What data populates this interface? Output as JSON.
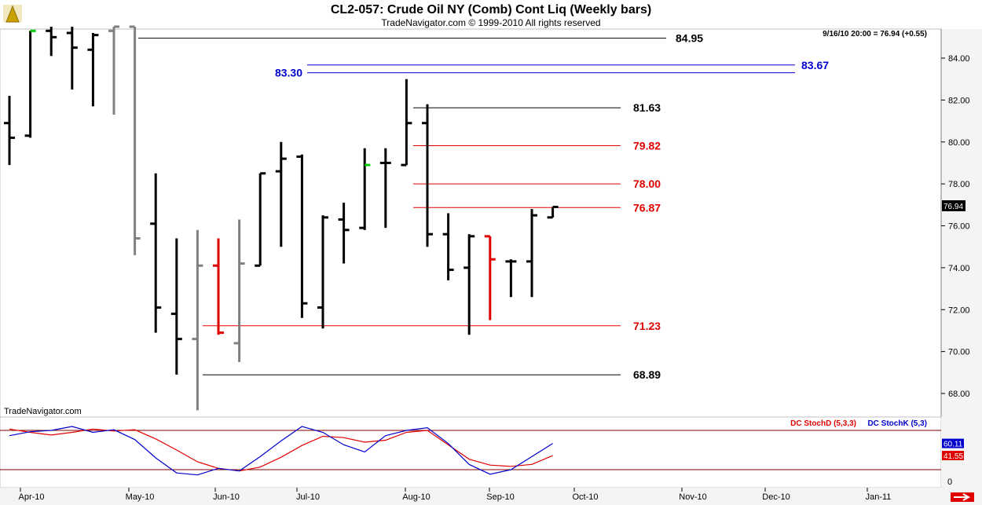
{
  "header": {
    "title": "CL2-057:  Crude Oil NY (Comb) Cont Liq  (Weekly bars)",
    "copyright": "TradeNavigator.com © 1999-2010 All rights reserved",
    "info": "9/16/10 20:00 = 76.94 (+0.55)",
    "watermark": "TradeNavigator.com",
    "last_price_tag": "76.94"
  },
  "colors": {
    "background": "#ffffff",
    "bar_up_down": "#000000",
    "bar_gray": "#808080",
    "bar_red": "#e00000",
    "level_black": "#000000",
    "level_red": "#e00000",
    "level_blue": "#0000cc",
    "stoch_d": "#e00000",
    "stoch_k": "#0000cc"
  },
  "chart_data": [
    {
      "type": "ohlc",
      "title": "CL2-057:  Crude Oil NY (Comb) Cont Liq  (Weekly bars)",
      "ylim": [
        67,
        86
      ],
      "y_ticks": [
        "84.00",
        "82.00",
        "80.00",
        "78.00",
        "76.00",
        "74.00",
        "72.00",
        "70.00",
        "68.00"
      ],
      "x_ticks": [
        "Apr-10",
        "May-10",
        "Jun-10",
        "Jul-10",
        "Aug-10",
        "Sep-10",
        "Oct-10",
        "Nov-10",
        "Dec-10",
        "Jan-11"
      ],
      "bars": [
        {
          "o": 80.9,
          "h": 82.2,
          "l": 78.9,
          "c": 80.2,
          "color": "black"
        },
        {
          "o": 80.3,
          "h": 85.3,
          "l": 80.2,
          "c": 85.3,
          "color": "black",
          "close_mark": "green"
        },
        {
          "o": 85.3,
          "h": 85.5,
          "l": 84.1,
          "c": 85.0,
          "color": "black"
        },
        {
          "o": 85.2,
          "h": 85.5,
          "l": 82.5,
          "c": 84.5,
          "color": "black"
        },
        {
          "o": 84.4,
          "h": 85.2,
          "l": 81.7,
          "c": 85.1,
          "color": "black"
        },
        {
          "o": 85.3,
          "h": 85.5,
          "l": 81.3,
          "c": 85.5,
          "color": "gray"
        },
        {
          "o": 85.5,
          "h": 85.5,
          "l": 74.6,
          "c": 75.4,
          "color": "gray"
        },
        {
          "o": 76.1,
          "h": 78.5,
          "l": 70.9,
          "c": 72.1,
          "color": "black"
        },
        {
          "o": 71.8,
          "h": 75.4,
          "l": 68.9,
          "c": 70.6,
          "color": "black"
        },
        {
          "o": 70.6,
          "h": 75.8,
          "l": 67.2,
          "c": 74.1,
          "color": "gray"
        },
        {
          "o": 74.1,
          "h": 75.4,
          "l": 70.8,
          "c": 70.9,
          "color": "red"
        },
        {
          "o": 70.4,
          "h": 76.3,
          "l": 69.5,
          "c": 74.2,
          "color": "gray"
        },
        {
          "o": 74.1,
          "h": 78.5,
          "l": 74.1,
          "c": 78.5,
          "color": "black"
        },
        {
          "o": 78.6,
          "h": 80.0,
          "l": 75.0,
          "c": 79.2,
          "color": "black"
        },
        {
          "o": 79.3,
          "h": 79.4,
          "l": 71.6,
          "c": 72.3,
          "color": "black"
        },
        {
          "o": 72.1,
          "h": 76.5,
          "l": 71.1,
          "c": 76.4,
          "color": "black"
        },
        {
          "o": 76.3,
          "h": 77.1,
          "l": 74.2,
          "c": 75.8,
          "color": "black"
        },
        {
          "o": 75.9,
          "h": 79.7,
          "l": 75.8,
          "c": 78.9,
          "color": "black",
          "close_mark": "green"
        },
        {
          "o": 79.0,
          "h": 79.7,
          "l": 75.9,
          "c": 79.0,
          "color": "black"
        },
        {
          "o": 78.9,
          "h": 83.0,
          "l": 78.9,
          "c": 80.9,
          "color": "black"
        },
        {
          "o": 80.9,
          "h": 81.8,
          "l": 75.0,
          "c": 75.6,
          "color": "black"
        },
        {
          "o": 75.6,
          "h": 76.6,
          "l": 73.4,
          "c": 73.9,
          "color": "black"
        },
        {
          "o": 74.0,
          "h": 75.6,
          "l": 70.8,
          "c": 75.5,
          "color": "black"
        },
        {
          "o": 75.5,
          "h": 75.5,
          "l": 71.5,
          "c": 74.4,
          "color": "red"
        },
        {
          "o": 74.3,
          "h": 74.4,
          "l": 72.6,
          "c": 74.3,
          "color": "black"
        },
        {
          "o": 74.3,
          "h": 76.8,
          "l": 72.6,
          "c": 76.5,
          "color": "black"
        },
        {
          "o": 76.4,
          "h": 76.9,
          "l": 76.4,
          "c": 76.9,
          "color": "black"
        }
      ],
      "levels": [
        {
          "label": "84.95",
          "value": 84.95,
          "color": "black"
        },
        {
          "label": "83.67",
          "value": 83.67,
          "color": "blue"
        },
        {
          "label": "83.30",
          "value": 83.3,
          "color": "blue"
        },
        {
          "label": "81.63",
          "value": 81.63,
          "color": "black"
        },
        {
          "label": "79.82",
          "value": 79.82,
          "color": "red"
        },
        {
          "label": "78.00",
          "value": 78.0,
          "color": "red"
        },
        {
          "label": "76.87",
          "value": 76.87,
          "color": "red"
        },
        {
          "label": "71.23",
          "value": 71.23,
          "color": "red"
        },
        {
          "label": "68.89",
          "value": 68.89,
          "color": "black"
        }
      ]
    },
    {
      "type": "line",
      "legend": [
        "DC StochD (5,3,3)",
        "DC StochK (5,3)"
      ],
      "ylim": [
        -5,
        95
      ],
      "reference_lines": [
        80,
        20
      ],
      "y_ticks": [
        "0"
      ],
      "value_tags": [
        "60.11",
        "41.55"
      ],
      "series": [
        {
          "name": "DC StochD (5,3,3)",
          "color": "red",
          "values": [
            82,
            77,
            73,
            77,
            82,
            79,
            81,
            67,
            50,
            32,
            22,
            18,
            24,
            39,
            57,
            71,
            69,
            62,
            65,
            77,
            80,
            58,
            36,
            27,
            25,
            28,
            41.55
          ]
        },
        {
          "name": "DC StochK (5,3)",
          "color": "blue",
          "values": [
            72,
            78,
            80,
            86,
            77,
            81,
            66,
            38,
            15,
            12,
            22,
            18,
            40,
            64,
            86,
            77,
            58,
            47,
            72,
            80,
            84,
            60,
            28,
            13,
            20,
            40,
            60.11
          ]
        }
      ]
    }
  ]
}
